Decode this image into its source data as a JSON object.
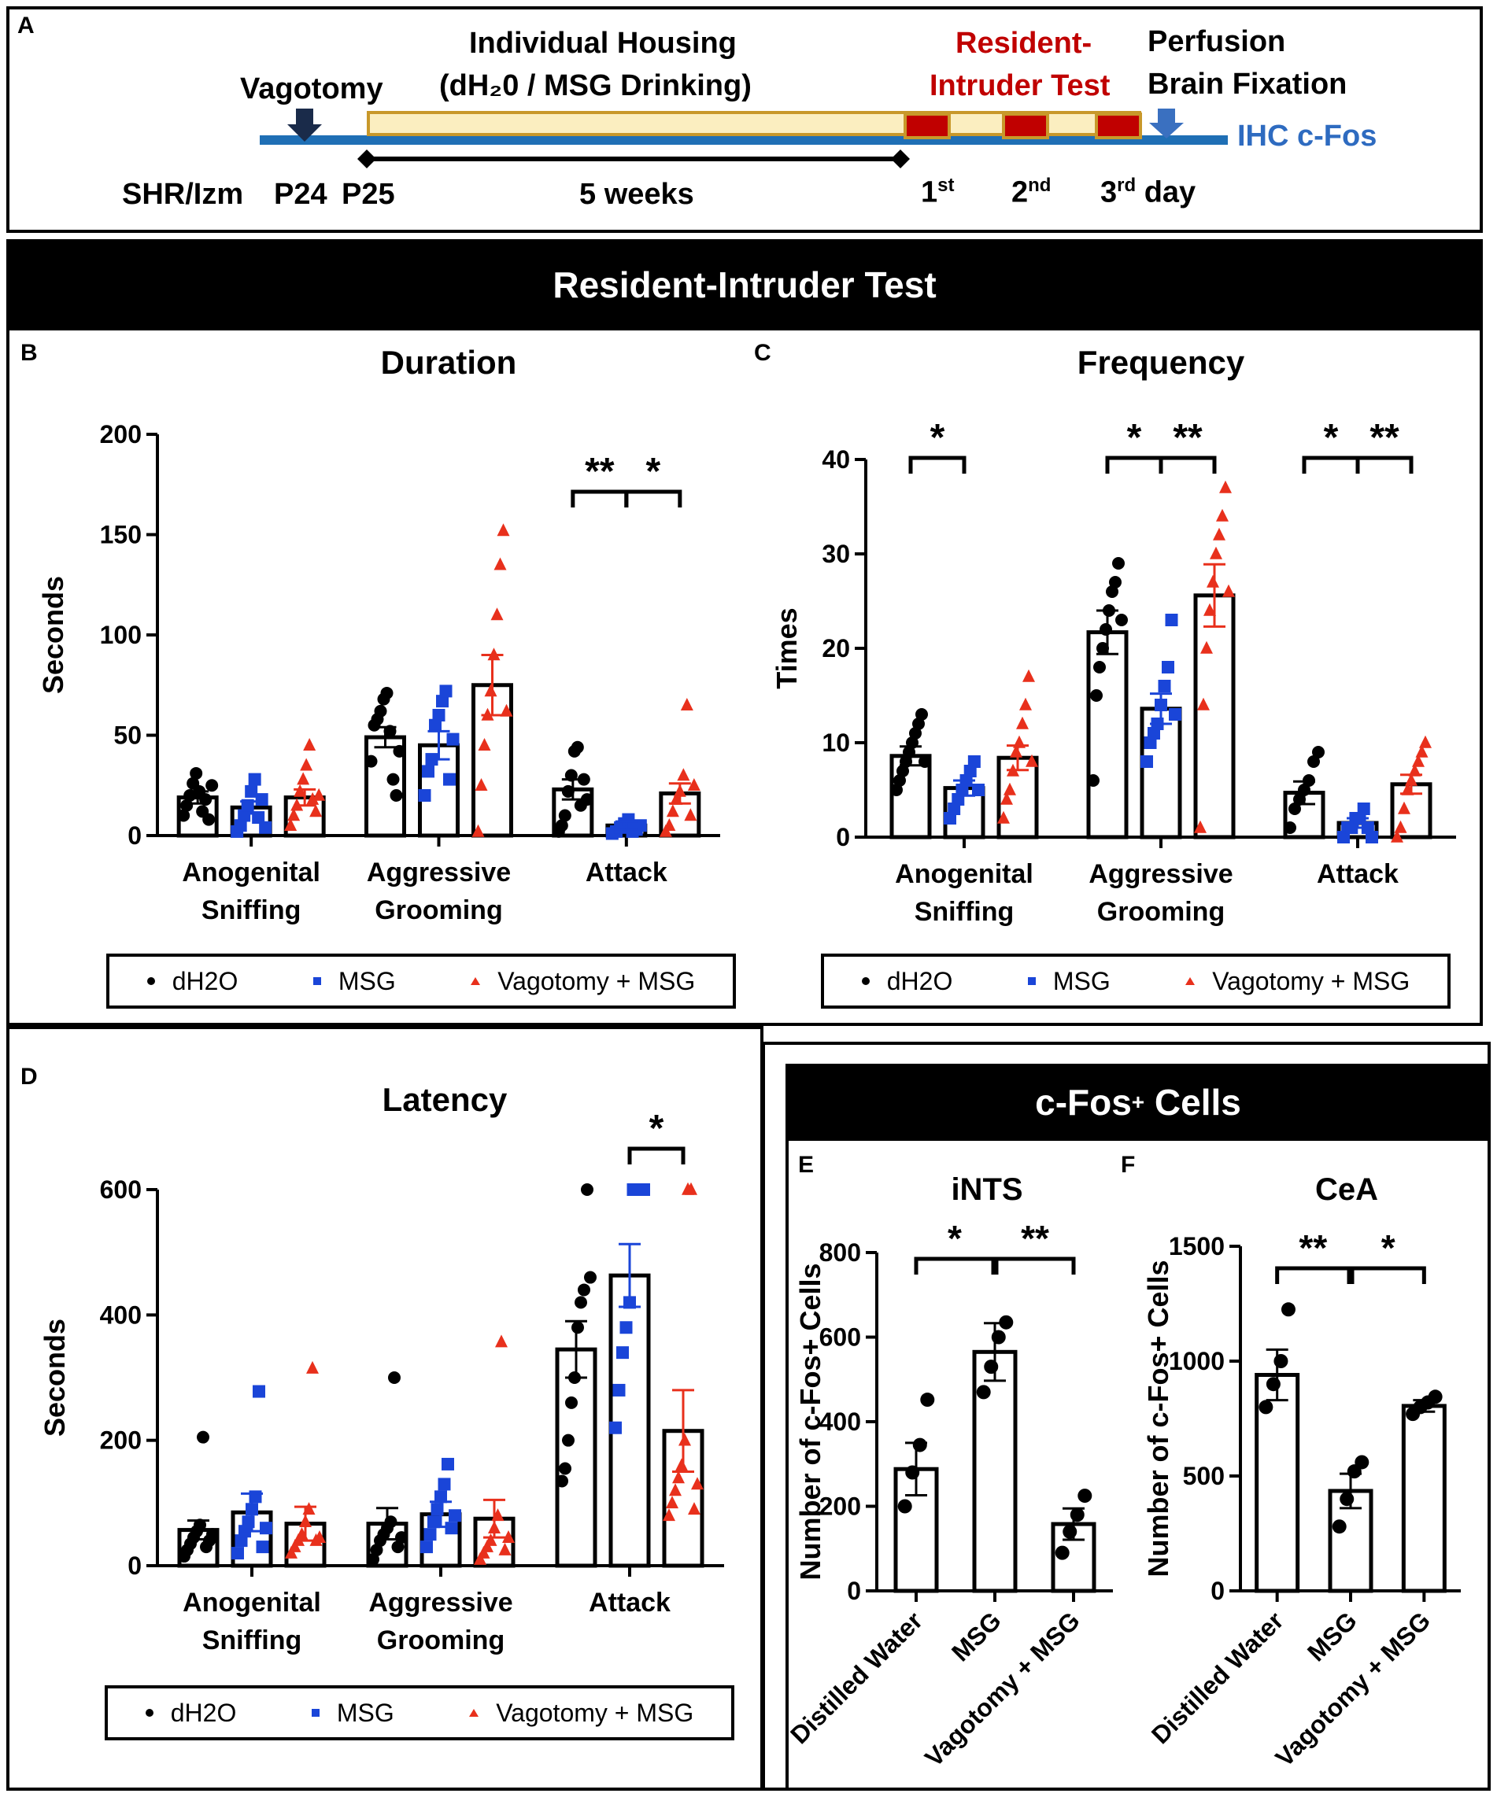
{
  "panel_labels": {
    "a": "A",
    "b": "B",
    "c": "C",
    "d": "D",
    "e": "E",
    "f": "F"
  },
  "timeline": {
    "vagotomy": "Vagotomy",
    "housing_line1": "Individual Housing",
    "housing_line2": "(dH₂0 / MSG Drinking)",
    "rit_line1": "Resident-",
    "rit_line2": "Intruder Test",
    "perfusion_line1": "Perfusion",
    "perfusion_line2": "Brain Fixation",
    "ihc": "IHC c-Fos",
    "strain": "SHR/Izm",
    "p24": "P24",
    "p25": "P25",
    "weeks": "5 weeks",
    "day1": "1st",
    "day2": "2nd",
    "day3": "3rd day",
    "colors": {
      "axis": "#1f6fb5",
      "housing": "#fbeec0",
      "housing_border": "#c8982a",
      "test_box": "#c00000",
      "arrow_dark": "#1a2b4a",
      "arrow_blue": "#3a70c0",
      "rit_text": "#c00000",
      "ihc_text": "#2e6bc0"
    }
  },
  "banners": {
    "rit": "Resident-Intruder Test",
    "cfos_main": "c-Fos",
    "cfos_sup": "+",
    "cfos_tail": " Cells"
  },
  "legend": {
    "dh2o": "dH2O",
    "msg": "MSG",
    "vag": "Vagotomy + MSG"
  },
  "colors": {
    "dH2O": "#000000",
    "MSG": "#1a45d8",
    "Vag": "#e8301c"
  },
  "chart_data": [
    {
      "id": "B",
      "type": "bar",
      "title": "Duration",
      "ylabel": "Seconds",
      "ylim": [
        0,
        200
      ],
      "yticks": [
        0,
        50,
        100,
        150,
        200
      ],
      "categories": [
        "Anogenital\nSniffing",
        "Aggressive\nGrooming",
        "Attack"
      ],
      "series": [
        {
          "name": "dH2O",
          "means": [
            19,
            49,
            23
          ],
          "sems": [
            3,
            5,
            5
          ],
          "points": [
            [
              10,
              15,
              20,
              26,
              31,
              22,
              12,
              18,
              8,
              25
            ],
            [
              37,
              55,
              58,
              62,
              68,
              71,
              52,
              28,
              20,
              42
            ],
            [
              2,
              5,
              10,
              22,
              30,
              42,
              44,
              15,
              28,
              18
            ]
          ]
        },
        {
          "name": "MSG",
          "means": [
            14,
            45,
            5
          ],
          "sems": [
            3,
            7,
            2
          ],
          "points": [
            [
              2,
              5,
              10,
              15,
              22,
              28,
              9,
              18,
              4
            ],
            [
              20,
              32,
              38,
              55,
              60,
              67,
              72,
              28,
              48
            ],
            [
              1,
              2,
              4,
              6,
              8,
              2,
              3,
              5
            ]
          ]
        },
        {
          "name": "Vagotomy + MSG",
          "means": [
            19,
            75,
            21
          ],
          "sems": [
            4,
            15,
            5
          ],
          "points": [
            [
              5,
              10,
              15,
              22,
              28,
              35,
              45,
              18,
              12,
              20
            ],
            [
              2,
              25,
              45,
              60,
              72,
              90,
              110,
              135,
              152,
              62
            ],
            [
              2,
              5,
              12,
              18,
              22,
              30,
              65,
              10,
              25
            ]
          ]
        }
      ],
      "significance": [
        {
          "group": "Attack",
          "pair": [
            "dH2O",
            "MSG"
          ],
          "label": "**"
        },
        {
          "group": "Attack",
          "pair": [
            "MSG",
            "Vagotomy + MSG"
          ],
          "label": "*"
        }
      ]
    },
    {
      "id": "C",
      "type": "bar",
      "title": "Frequency",
      "ylabel": "Times",
      "ylim": [
        0,
        40
      ],
      "yticks": [
        0,
        10,
        20,
        30,
        40
      ],
      "categories": [
        "Anogenital\nSniffing",
        "Aggressive\nGrooming",
        "Attack"
      ],
      "series": [
        {
          "name": "dH2O",
          "means": [
            8.6,
            21.7,
            4.7
          ],
          "sems": [
            1.0,
            2.3,
            1.2
          ],
          "points": [
            [
              5,
              6,
              7,
              8,
              9,
              10,
              11,
              12,
              13,
              8
            ],
            [
              6,
              15,
              18,
              20,
              22,
              24,
              26,
              27,
              29,
              23
            ],
            [
              1,
              3,
              4,
              5,
              6,
              8,
              9
            ]
          ]
        },
        {
          "name": "MSG",
          "means": [
            5.2,
            13.6,
            1.5
          ],
          "sems": [
            0.8,
            1.6,
            0.5
          ],
          "points": [
            [
              2,
              3,
              4,
              5,
              6,
              7,
              8,
              5
            ],
            [
              8,
              10,
              11,
              12,
              14,
              16,
              18,
              23,
              13
            ],
            [
              0,
              1,
              1,
              2,
              2,
              3,
              1,
              0
            ]
          ]
        },
        {
          "name": "Vagotomy + MSG",
          "means": [
            8.4,
            25.6,
            5.6
          ],
          "sems": [
            1.3,
            3.3,
            1.0
          ],
          "points": [
            [
              2,
              4,
              5,
              7,
              9,
              10,
              12,
              14,
              17,
              8
            ],
            [
              1,
              14,
              20,
              24,
              27,
              30,
              32,
              34,
              37,
              26
            ],
            [
              0,
              1,
              3,
              5,
              6,
              7,
              8,
              9,
              10
            ]
          ]
        }
      ],
      "significance": [
        {
          "group": "Anogenital\nSniffing",
          "pair": [
            "dH2O",
            "MSG"
          ],
          "label": "*"
        },
        {
          "group": "Aggressive\nGrooming",
          "pair": [
            "dH2O",
            "MSG"
          ],
          "label": "*"
        },
        {
          "group": "Aggressive\nGrooming",
          "pair": [
            "MSG",
            "Vagotomy + MSG"
          ],
          "label": "**"
        },
        {
          "group": "Attack",
          "pair": [
            "dH2O",
            "MSG"
          ],
          "label": "*"
        },
        {
          "group": "Attack",
          "pair": [
            "MSG",
            "Vagotomy + MSG"
          ],
          "label": "**"
        }
      ]
    },
    {
      "id": "D",
      "type": "bar",
      "title": "Latency",
      "ylabel": "Seconds",
      "ylim": [
        0,
        600
      ],
      "yticks": [
        0,
        200,
        400,
        600
      ],
      "categories": [
        "Anogenital\nSniffing",
        "Aggressive\nGrooming",
        "Attack"
      ],
      "series": [
        {
          "name": "dH2O",
          "means": [
            57,
            67,
            345
          ],
          "sems": [
            15,
            25,
            45
          ],
          "points": [
            [
              15,
              25,
              35,
              45,
              55,
              65,
              205,
              30,
              40,
              50
            ],
            [
              10,
              25,
              40,
              50,
              60,
              70,
              300,
              30,
              45
            ],
            [
              135,
              155,
              200,
              260,
              300,
              380,
              420,
              440,
              600,
              460
            ]
          ]
        },
        {
          "name": "MSG",
          "means": [
            85,
            82,
            463
          ],
          "sems": [
            30,
            20,
            50
          ],
          "points": [
            [
              20,
              40,
              55,
              70,
              90,
              110,
              278,
              30,
              60
            ],
            [
              30,
              50,
              70,
              90,
              110,
              130,
              162,
              60,
              80
            ],
            [
              220,
              280,
              340,
              380,
              420,
              600,
              600,
              600,
              600
            ]
          ]
        },
        {
          "name": "Vagotomy + MSG",
          "means": [
            67,
            75,
            215
          ],
          "sems": [
            27,
            30,
            65
          ],
          "points": [
            [
              20,
              30,
              40,
              50,
              70,
              90,
              315,
              40,
              45
            ],
            [
              10,
              20,
              30,
              40,
              60,
              80,
              357,
              25,
              45
            ],
            [
              80,
              100,
              120,
              140,
              160,
              200,
              600,
              600,
              90,
              130
            ]
          ]
        }
      ],
      "significance": [
        {
          "group": "Attack",
          "pair": [
            "MSG",
            "Vagotomy + MSG"
          ],
          "label": "*"
        }
      ]
    },
    {
      "id": "E",
      "type": "bar",
      "title": "iNTS",
      "ylabel": "Number of c-Fos+ Cells",
      "ylim": [
        0,
        800
      ],
      "yticks": [
        0,
        200,
        400,
        600,
        800
      ],
      "categories": [
        "Distilled Water",
        "MSG",
        "Vagotomy + MSG"
      ],
      "series": [
        {
          "name": "c-Fos+ Cells",
          "means": [
            288,
            565,
            158
          ],
          "sems": [
            62,
            68,
            37
          ],
          "points": [
            [
              200,
              280,
              345,
              452
            ],
            [
              470,
              530,
              600,
              635
            ],
            [
              90,
              140,
              180,
              225
            ]
          ]
        }
      ],
      "significance": [
        {
          "pair": [
            "Distilled Water",
            "MSG"
          ],
          "label": "*"
        },
        {
          "pair": [
            "MSG",
            "Vagotomy + MSG"
          ],
          "label": "**"
        }
      ]
    },
    {
      "id": "F",
      "type": "bar",
      "title": "CeA",
      "ylabel": "Number of c-Fos+ Cells",
      "ylim": [
        0,
        1500
      ],
      "yticks": [
        0,
        500,
        1000,
        1500
      ],
      "categories": [
        "Distilled Water",
        "MSG",
        "Vagotomy + MSG"
      ],
      "series": [
        {
          "name": "c-Fos+ Cells",
          "means": [
            940,
            435,
            805
          ],
          "sems": [
            110,
            75,
            25
          ],
          "points": [
            [
              800,
              900,
              1000,
              1225
            ],
            [
              280,
              400,
              520,
              560
            ],
            [
              770,
              800,
              820,
              845
            ]
          ]
        }
      ],
      "significance": [
        {
          "pair": [
            "Distilled Water",
            "MSG"
          ],
          "label": "**"
        },
        {
          "pair": [
            "MSG",
            "Vagotomy + MSG"
          ],
          "label": "*"
        }
      ]
    }
  ]
}
